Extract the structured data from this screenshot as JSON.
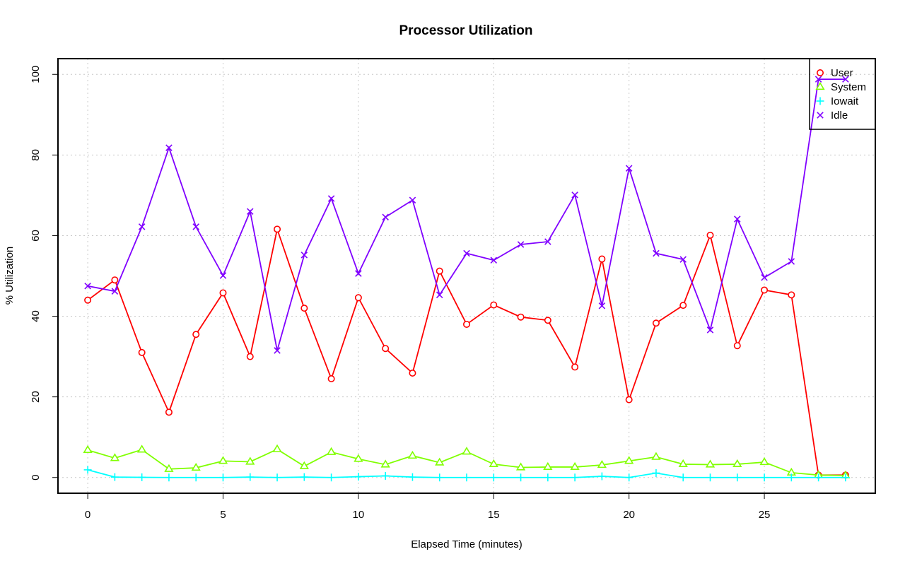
{
  "chart_data": {
    "type": "line",
    "title": "Processor Utilization",
    "xlabel": "Elapsed Time (minutes)",
    "ylabel": "% Utilization",
    "xlim": [
      -1.1,
      29.1
    ],
    "ylim": [
      -3.9,
      103.9
    ],
    "xticks": [
      0,
      5,
      10,
      15,
      20,
      25
    ],
    "yticks": [
      0,
      20,
      40,
      60,
      80,
      100
    ],
    "grid": true,
    "legend_position": "top-right",
    "x": [
      0,
      1,
      2,
      3,
      4,
      5,
      6,
      7,
      8,
      9,
      10,
      11,
      12,
      13,
      14,
      15,
      16,
      17,
      18,
      19,
      20,
      21,
      22,
      23,
      24,
      25,
      26,
      27,
      28
    ],
    "series": [
      {
        "name": "User",
        "color": "#ff0000",
        "marker": "circle",
        "values": [
          44,
          49,
          31,
          16.2,
          35.5,
          45.8,
          30,
          61.6,
          42,
          24.5,
          44.6,
          32,
          25.9,
          51.2,
          38,
          42.8,
          39.8,
          39,
          27.4,
          54.2,
          19.3,
          38.3,
          42.7,
          60.1,
          32.7,
          46.5,
          45.3,
          0.6,
          0.6
        ]
      },
      {
        "name": "System",
        "color": "#80ff00",
        "marker": "triangle",
        "values": [
          6.8,
          4.8,
          6.9,
          2.1,
          2.4,
          4.1,
          3.9,
          7,
          2.8,
          6.3,
          4.6,
          3.2,
          5.4,
          3.7,
          6.4,
          3.3,
          2.5,
          2.6,
          2.6,
          3.1,
          4.1,
          5.1,
          3.3,
          3.2,
          3.3,
          3.8,
          1.2,
          0.6,
          0.5
        ]
      },
      {
        "name": "Iowait",
        "color": "#00ffff",
        "marker": "plus",
        "values": [
          1.9,
          0.1,
          0.05,
          0,
          0,
          0,
          0.1,
          0,
          0.1,
          0,
          0.2,
          0.4,
          0.1,
          0,
          0,
          0,
          0,
          0,
          0,
          0.3,
          0,
          1.1,
          0,
          0,
          0,
          0,
          0,
          0,
          0
        ]
      },
      {
        "name": "Idle",
        "color": "#8000ff",
        "marker": "x",
        "values": [
          47.5,
          46.2,
          62.2,
          81.8,
          62.2,
          50.1,
          66,
          31.5,
          55.2,
          69.2,
          50.6,
          64.6,
          68.8,
          45.3,
          55.6,
          53.9,
          57.8,
          58.5,
          70.1,
          42.6,
          76.7,
          55.6,
          54.1,
          36.6,
          64.1,
          49.6,
          53.6,
          98.8,
          98.8
        ]
      }
    ]
  }
}
